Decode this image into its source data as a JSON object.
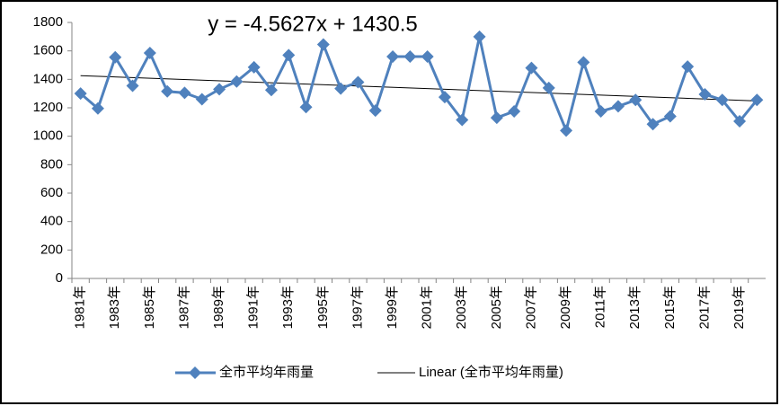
{
  "chart_data": {
    "type": "line",
    "categories": [
      "1981年",
      null,
      "1983年",
      null,
      "1985年",
      null,
      "1987年",
      null,
      "1989年",
      null,
      "1991年",
      null,
      "1993年",
      null,
      "1995年",
      null,
      "1997年",
      null,
      "1999年",
      null,
      "2001年",
      null,
      "2003年",
      null,
      "2005年",
      null,
      "2007年",
      null,
      "2009年",
      null,
      "2011年",
      null,
      "2013年",
      null,
      "2015年",
      null,
      "2017年",
      null,
      "2019年",
      null
    ],
    "series": [
      {
        "name": "全市平均年雨量",
        "color": "#4f81bd",
        "values": [
          1300,
          1195,
          1555,
          1355,
          1585,
          1315,
          1305,
          1260,
          1330,
          1385,
          1485,
          1325,
          1570,
          1205,
          1645,
          1335,
          1380,
          1180,
          1560,
          1560,
          1560,
          1275,
          1115,
          1700,
          1130,
          1175,
          1480,
          1340,
          1040,
          1520,
          1175,
          1210,
          1255,
          1085,
          1140,
          1490,
          1295,
          1255,
          1105,
          1255
        ]
      }
    ],
    "trend": {
      "name": "Linear (全市平均年雨量)",
      "equation": "y = -4.5627x + 1430.5",
      "slope": -4.5627,
      "intercept": 1430.5,
      "color": "#000000"
    },
    "ylim": [
      0,
      1800
    ],
    "yticks": [
      0,
      200,
      400,
      600,
      800,
      1000,
      1200,
      1400,
      1600,
      1800
    ],
    "grid": false,
    "legend": "bottom"
  }
}
